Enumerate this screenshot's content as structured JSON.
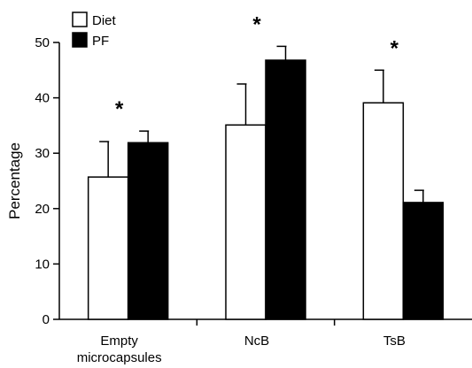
{
  "chart_data": {
    "type": "bar",
    "categories": [
      [
        "Empty",
        "microcapsules"
      ],
      [
        "NcB"
      ],
      [
        "TsB"
      ]
    ],
    "series": [
      {
        "name": "Diet",
        "values": [
          25.7,
          35.1,
          39.1
        ],
        "errors": [
          6.4,
          7.4,
          5.9
        ],
        "color": "#ffffff"
      },
      {
        "name": "PF",
        "values": [
          31.9,
          46.8,
          21.1
        ],
        "errors": [
          2.1,
          2.5,
          2.2
        ],
        "color": "#000000"
      }
    ],
    "significance": [
      "*",
      "*",
      "*"
    ],
    "ylabel": "Percentage",
    "xlabel": "",
    "ylim": [
      0,
      50
    ],
    "yticks": [
      0,
      10,
      20,
      30,
      40,
      50
    ],
    "legend": "top-left",
    "grid": false
  }
}
